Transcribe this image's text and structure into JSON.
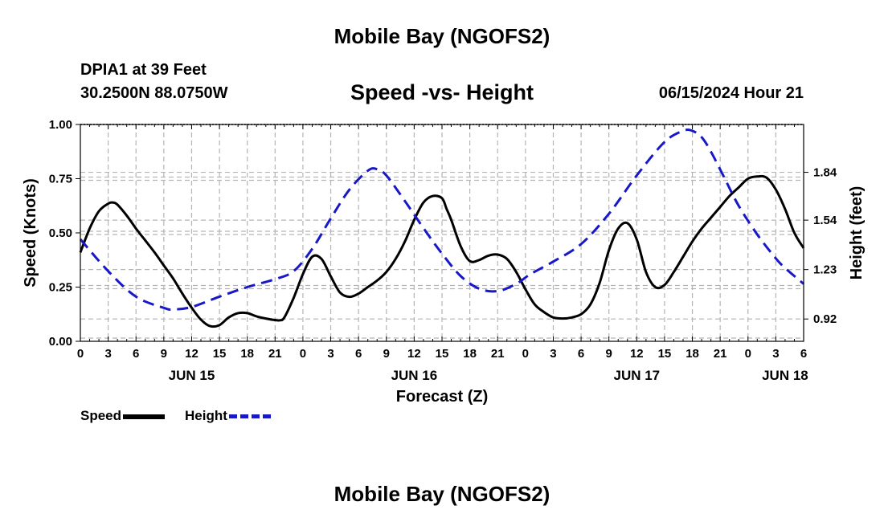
{
  "header": {
    "title": "Mobile Bay (NGOFS2)",
    "station": "DPIA1 at 39 Feet",
    "coords": "30.2500N  88.0750W",
    "subtitle": "Speed -vs- Height",
    "timestamp": "06/15/2024 Hour 21"
  },
  "footer": {
    "title": "Mobile Bay (NGOFS2)"
  },
  "legend": {
    "speed": "Speed",
    "height": "Height"
  },
  "colors": {
    "speed": "#000000",
    "height": "#1818c8",
    "grid": "#b4b4b4"
  },
  "chart_data": {
    "type": "line",
    "xlabel": "Forecast (Z)",
    "ylabel_left": "Speed (Knots)",
    "ylabel_right": "Height (feet)",
    "xlim": [
      0,
      78
    ],
    "ylim_left": [
      0,
      1.0
    ],
    "ylim_right": [
      0.78,
      2.14
    ],
    "left_ticks": [
      "0.00",
      "0.25",
      "0.50",
      "0.75",
      "1.00"
    ],
    "right_ticks": [
      "0.92",
      "1.23",
      "1.54",
      "1.84"
    ],
    "x_tick_labels": [
      "0",
      "3",
      "6",
      "9",
      "12",
      "15",
      "18",
      "21",
      "0",
      "3",
      "6",
      "9",
      "12",
      "15",
      "18",
      "21",
      "0",
      "3",
      "6",
      "9",
      "12",
      "15",
      "18",
      "21",
      "0",
      "3",
      "6"
    ],
    "day_labels": [
      {
        "hour": 12,
        "label": "JUN 15"
      },
      {
        "hour": 36,
        "label": "JUN 16"
      },
      {
        "hour": 60,
        "label": "JUN 17"
      },
      {
        "hour": 76,
        "label": "JUN 18"
      }
    ],
    "series": [
      {
        "name": "Speed",
        "axis": "left",
        "style": "solid",
        "x": [
          0,
          1,
          2,
          3,
          3.5,
          4,
          5,
          6,
          7,
          8,
          9,
          10,
          11,
          12,
          13,
          14,
          15,
          16,
          17,
          18,
          19,
          20,
          21,
          21.5,
          22,
          23,
          24,
          25,
          26,
          27,
          28,
          29,
          30,
          31,
          32,
          33,
          34,
          35,
          36,
          37,
          38,
          39,
          39.5,
          40,
          41,
          42,
          43,
          44,
          45,
          46,
          47,
          48,
          49,
          50,
          51,
          52,
          53,
          54,
          55,
          56,
          57,
          58,
          59,
          60,
          61,
          62,
          63,
          64,
          65,
          66,
          67,
          68,
          69,
          70,
          71,
          72,
          73,
          74,
          75,
          76,
          77,
          78
        ],
        "values": [
          0.41,
          0.52,
          0.6,
          0.635,
          0.64,
          0.63,
          0.58,
          0.52,
          0.465,
          0.41,
          0.35,
          0.29,
          0.22,
          0.155,
          0.1,
          0.07,
          0.075,
          0.11,
          0.13,
          0.13,
          0.115,
          0.105,
          0.098,
          0.097,
          0.11,
          0.2,
          0.31,
          0.39,
          0.38,
          0.3,
          0.225,
          0.205,
          0.22,
          0.25,
          0.28,
          0.32,
          0.38,
          0.46,
          0.56,
          0.64,
          0.67,
          0.66,
          0.61,
          0.56,
          0.44,
          0.37,
          0.375,
          0.395,
          0.4,
          0.38,
          0.32,
          0.24,
          0.17,
          0.135,
          0.11,
          0.105,
          0.11,
          0.125,
          0.17,
          0.27,
          0.42,
          0.52,
          0.545,
          0.47,
          0.32,
          0.25,
          0.26,
          0.32,
          0.39,
          0.46,
          0.52,
          0.57,
          0.62,
          0.67,
          0.71,
          0.75,
          0.76,
          0.755,
          0.7,
          0.61,
          0.5,
          0.43
        ]
      },
      {
        "name": "Height",
        "axis": "right",
        "style": "dashed",
        "x": [
          0,
          3,
          6,
          9,
          10,
          12,
          15,
          18,
          21,
          23,
          25,
          27,
          29,
          31,
          32,
          33,
          35,
          37,
          39,
          41,
          43,
          45,
          47,
          48.5,
          51,
          54,
          57,
          60,
          63,
          65,
          66,
          67,
          68,
          69.5,
          71,
          73,
          75,
          76,
          78
        ],
        "values": [
          1.42,
          1.22,
          1.06,
          0.99,
          0.98,
          0.995,
          1.06,
          1.12,
          1.17,
          1.22,
          1.36,
          1.55,
          1.73,
          1.85,
          1.86,
          1.82,
          1.66,
          1.49,
          1.33,
          1.19,
          1.11,
          1.095,
          1.14,
          1.2,
          1.28,
          1.39,
          1.58,
          1.82,
          2.03,
          2.1,
          2.1,
          2.06,
          1.97,
          1.8,
          1.63,
          1.45,
          1.3,
          1.24,
          1.14
        ]
      }
    ]
  }
}
